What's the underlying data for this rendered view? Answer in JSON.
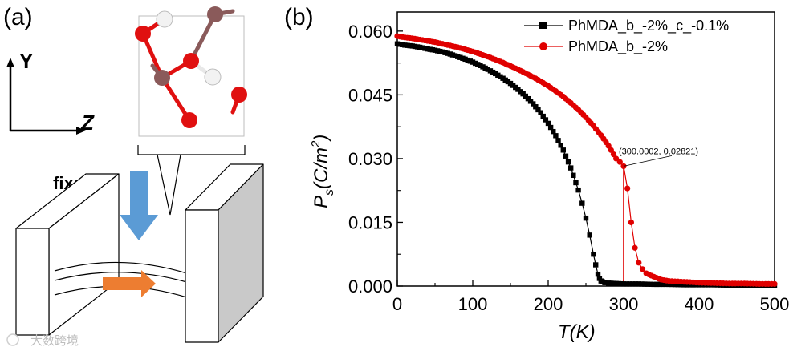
{
  "panel_a": {
    "label": "(a)",
    "axis_y": "Y",
    "axis_z": "Z",
    "fixed_label": "fixed",
    "colors": {
      "oxygen": "#e01010",
      "carbon": "#8a5a5a",
      "hydrogen": "#f2f2f2",
      "arrow_down": "#5b9bd5",
      "arrow_right": "#ed7d31"
    }
  },
  "panel_b": {
    "label": "(b)",
    "ylabel_main": "P",
    "ylabel_sub": "s",
    "ylabel_unit_start": "(C/m",
    "ylabel_unit_sup": "2",
    "ylabel_unit_end": ")",
    "xlabel": "T(K)",
    "annotation": "(300.0002, 0.02821)"
  },
  "watermark": "大数跨境",
  "chart_data": {
    "type": "scatter",
    "title": "",
    "xlabel": "T(K)",
    "ylabel": "Ps(C/m2)",
    "xlim": [
      0,
      500
    ],
    "ylim": [
      0,
      0.0645
    ],
    "xticks": [
      "0",
      "100",
      "200",
      "300",
      "400",
      "500"
    ],
    "yticks": [
      "0.000",
      "0.015",
      "0.030",
      "0.045",
      "0.060"
    ],
    "legend_position": "top-right",
    "series": [
      {
        "name": "PhMDA_b_-2%_c_-0.1%",
        "color": "#000000",
        "marker": "square",
        "x": [
          0,
          10,
          20,
          30,
          40,
          50,
          60,
          70,
          80,
          90,
          100,
          110,
          120,
          130,
          140,
          150,
          160,
          170,
          180,
          190,
          200,
          210,
          220,
          230,
          240,
          245,
          250,
          255,
          260,
          263,
          266,
          268,
          270,
          272,
          275,
          280,
          290,
          300,
          320,
          340,
          360,
          380,
          400,
          420,
          440,
          460,
          480,
          500
        ],
        "y": [
          0.057,
          0.0567,
          0.0565,
          0.0562,
          0.0558,
          0.0555,
          0.0551,
          0.0546,
          0.054,
          0.0534,
          0.0527,
          0.0519,
          0.051,
          0.05,
          0.0489,
          0.0477,
          0.0463,
          0.0447,
          0.0429,
          0.0408,
          0.0383,
          0.0354,
          0.032,
          0.0278,
          0.0226,
          0.0195,
          0.016,
          0.012,
          0.0075,
          0.005,
          0.0028,
          0.0018,
          0.0012,
          0.001,
          0.0008,
          0.0007,
          0.0006,
          0.0005,
          0.0005,
          0.0004,
          0.0004,
          0.0003,
          0.0003,
          0.0003,
          0.0002,
          0.0002,
          0.0002,
          0.0002
        ]
      },
      {
        "name": "PhMDA_b_-2%",
        "color": "#e00000",
        "marker": "circle",
        "x": [
          0,
          10,
          20,
          30,
          40,
          50,
          60,
          70,
          80,
          90,
          100,
          110,
          120,
          130,
          140,
          150,
          160,
          170,
          180,
          190,
          200,
          210,
          220,
          230,
          240,
          250,
          260,
          270,
          280,
          290,
          295,
          300,
          305,
          310,
          315,
          320,
          325,
          330,
          340,
          350,
          360,
          380,
          400,
          420,
          440,
          460,
          480,
          500
        ],
        "y": [
          0.0588,
          0.0585,
          0.0583,
          0.058,
          0.0577,
          0.0574,
          0.057,
          0.0566,
          0.0562,
          0.0557,
          0.0552,
          0.0546,
          0.054,
          0.0533,
          0.0526,
          0.0518,
          0.051,
          0.0501,
          0.0492,
          0.0482,
          0.0471,
          0.0459,
          0.0446,
          0.0431,
          0.0415,
          0.0397,
          0.0377,
          0.0355,
          0.033,
          0.03,
          0.0292,
          0.0282,
          0.023,
          0.015,
          0.009,
          0.0055,
          0.004,
          0.003,
          0.0022,
          0.0015,
          0.0012,
          0.001,
          0.0008,
          0.0007,
          0.0006,
          0.0006,
          0.0005,
          0.0005
        ]
      }
    ],
    "annotations": [
      {
        "text": "(300.0002, 0.02821)",
        "x": 300.0002,
        "y": 0.02821
      }
    ],
    "reference_lines": [
      {
        "orientation": "vertical",
        "x": 300,
        "color": "#e00000"
      }
    ]
  }
}
